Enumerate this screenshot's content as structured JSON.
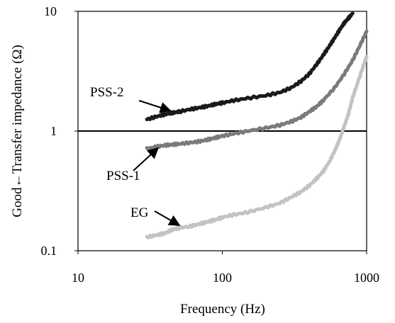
{
  "chart_data": {
    "type": "line",
    "x_scale": "log",
    "y_scale": "log",
    "xlim": [
      10,
      1000
    ],
    "ylim": [
      0.1,
      10
    ],
    "xlabel": "Frequency (Hz)",
    "ylabel": "Good←Transfer impedance (Ω)",
    "x_ticks": [
      "10",
      "100",
      "1000"
    ],
    "x_tick_values": [
      10,
      100,
      1000
    ],
    "y_ticks": [
      "0.1",
      "1",
      "10"
    ],
    "y_tick_values": [
      0.1,
      1,
      10
    ],
    "grid": false,
    "reference_line": {
      "y": 1
    },
    "series": [
      {
        "name": "PSS-2",
        "color": "#1a1a1a",
        "x": [
          30,
          35,
          40,
          45,
          50,
          60,
          70,
          80,
          90,
          100,
          120,
          150,
          200,
          250,
          300,
          350,
          400,
          450,
          500,
          550,
          600,
          650,
          700,
          750,
          800
        ],
        "y": [
          1.25,
          1.32,
          1.38,
          1.42,
          1.45,
          1.52,
          1.57,
          1.62,
          1.68,
          1.72,
          1.8,
          1.88,
          1.98,
          2.1,
          2.3,
          2.6,
          3.0,
          3.6,
          4.3,
          5.1,
          6.0,
          7.0,
          8.0,
          8.8,
          9.6
        ]
      },
      {
        "name": "PSS-1",
        "color": "#7b7b7b",
        "x": [
          30,
          35,
          40,
          45,
          50,
          60,
          70,
          80,
          90,
          100,
          120,
          150,
          200,
          250,
          300,
          350,
          400,
          450,
          500,
          600,
          700,
          800,
          900,
          1000
        ],
        "y": [
          0.71,
          0.74,
          0.76,
          0.77,
          0.78,
          0.8,
          0.82,
          0.85,
          0.88,
          0.91,
          0.95,
          1.0,
          1.06,
          1.12,
          1.2,
          1.3,
          1.45,
          1.6,
          1.8,
          2.3,
          3.0,
          3.9,
          5.2,
          6.8
        ]
      },
      {
        "name": "EG",
        "color": "#c3c3c3",
        "x": [
          30,
          35,
          40,
          45,
          50,
          60,
          70,
          80,
          90,
          100,
          120,
          150,
          200,
          250,
          300,
          350,
          400,
          450,
          500,
          550,
          600,
          650,
          700,
          750,
          800,
          900,
          1000
        ],
        "y": [
          0.13,
          0.135,
          0.14,
          0.15,
          0.155,
          0.16,
          0.168,
          0.175,
          0.182,
          0.19,
          0.2,
          0.21,
          0.23,
          0.25,
          0.28,
          0.31,
          0.35,
          0.4,
          0.46,
          0.55,
          0.68,
          0.85,
          1.1,
          1.4,
          1.9,
          2.9,
          4.2
        ]
      }
    ],
    "annotations": [
      {
        "text": "PSS-2",
        "series": "PSS-2",
        "arrow_to": {
          "x": 45,
          "y": 1.42
        }
      },
      {
        "text": "PSS-1",
        "series": "PSS-1",
        "arrow_to": {
          "x": 37,
          "y": 0.75
        }
      },
      {
        "text": "EG",
        "series": "EG",
        "arrow_to": {
          "x": 52,
          "y": 0.157
        }
      }
    ]
  }
}
